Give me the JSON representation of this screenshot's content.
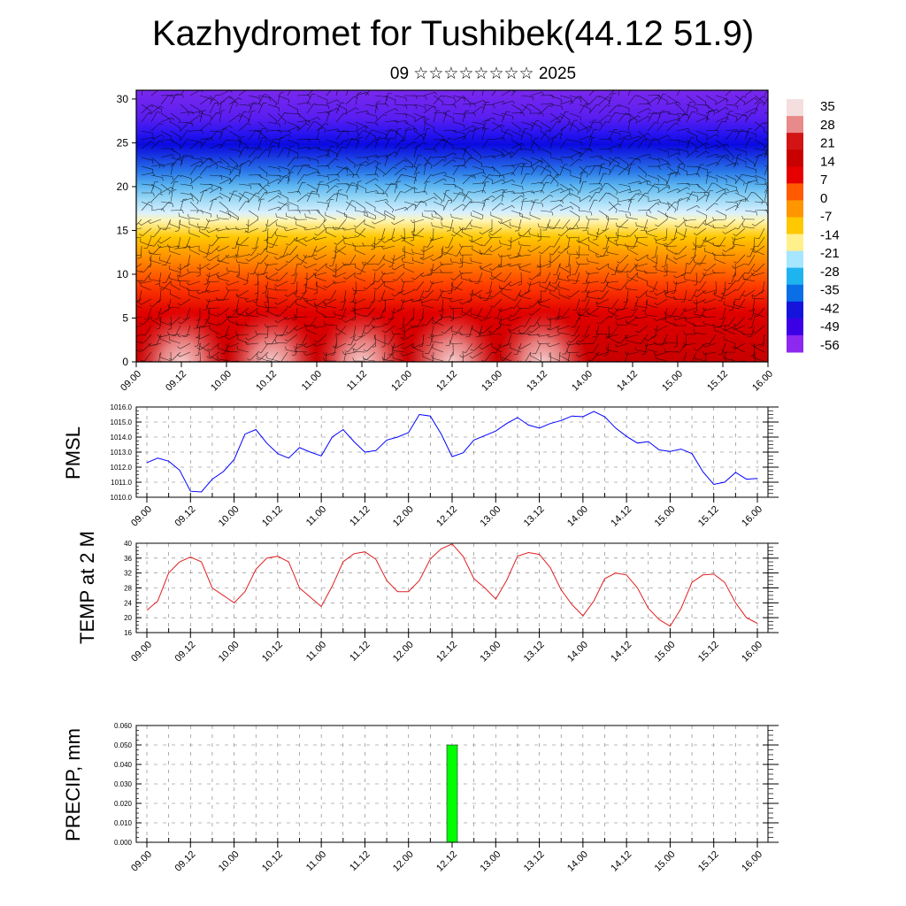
{
  "header": {
    "title": "Kazhydromet for Tushibek(44.12 51.9)",
    "subtitle": "09 ☆☆☆☆☆☆☆☆ 2025"
  },
  "time_ticks": [
    "09.00",
    "09.12",
    "10.00",
    "10.12",
    "11.00",
    "11.12",
    "12.00",
    "12.12",
    "13.00",
    "13.12",
    "14.00",
    "14.12",
    "15.00",
    "15.12",
    "16.00"
  ],
  "chart_data": [
    {
      "type": "heatmap",
      "description_kind": "vertical cross-section with wind barbs",
      "x_ticks": [
        "09.00",
        "09.12",
        "10.00",
        "10.12",
        "11.00",
        "11.12",
        "12.00",
        "12.12",
        "13.00",
        "13.12",
        "14.00",
        "14.12",
        "15.00",
        "15.12",
        "16.00"
      ],
      "y_ticks": [
        0,
        5,
        10,
        15,
        20,
        25,
        30
      ],
      "ylim": [
        0,
        31
      ],
      "colorbar_labels": [
        35,
        28,
        21,
        14,
        7,
        0,
        -7,
        -14,
        -21,
        -28,
        -35,
        -42,
        -49,
        -56
      ],
      "colorbar_colors": [
        "#f4dede",
        "#e88a8a",
        "#d21414",
        "#c80000",
        "#e60000",
        "#ff5a00",
        "#ff9600",
        "#ffc800",
        "#fff08c",
        "#a6e6ff",
        "#1eb4f0",
        "#0a6ee6",
        "#1414dc",
        "#3c00e6",
        "#8c28f0"
      ],
      "warm_cores_near_surface": [
        "09.12",
        "10.12",
        "11.12",
        "12.12",
        "13.12"
      ]
    },
    {
      "type": "line",
      "name": "PMSL",
      "ylabel": "PMSL",
      "ylim": [
        1010.0,
        1016.0
      ],
      "yticks": [
        "1010.0",
        "1011.0",
        "1012.0",
        "1013.0",
        "1014.0",
        "1015.0",
        "1016.0"
      ],
      "color": "#0000ff",
      "x_hours": [
        0,
        3,
        6,
        9,
        12,
        15,
        18,
        21,
        24,
        27,
        30,
        33,
        36,
        39,
        42,
        45,
        48,
        51,
        54,
        57,
        60,
        63,
        66,
        69,
        72,
        75,
        78,
        81,
        84,
        87,
        90,
        93,
        96,
        99,
        102,
        105,
        108,
        111,
        114,
        117,
        120,
        123,
        126,
        129,
        132,
        135,
        138,
        141,
        144,
        147,
        150,
        153,
        156,
        159,
        162,
        165,
        168
      ],
      "values": [
        1012.3,
        1012.6,
        1012.4,
        1011.8,
        1010.4,
        1010.35,
        1011.2,
        1011.7,
        1012.5,
        1014.2,
        1014.5,
        1013.6,
        1012.9,
        1012.6,
        1013.3,
        1013.0,
        1012.75,
        1014.0,
        1014.5,
        1013.7,
        1013.0,
        1013.1,
        1013.8,
        1014.0,
        1014.3,
        1015.5,
        1015.4,
        1014.2,
        1012.7,
        1012.95,
        1013.8,
        1014.1,
        1014.4,
        1014.9,
        1015.3,
        1014.8,
        1014.6,
        1014.9,
        1015.1,
        1015.4,
        1015.35,
        1015.7,
        1015.35,
        1014.6,
        1014.05,
        1013.6,
        1013.7,
        1013.15,
        1013.05,
        1013.2,
        1012.9,
        1011.7,
        1010.85,
        1011.0,
        1011.65,
        1011.2,
        1011.25
      ]
    },
    {
      "type": "line",
      "name": "TEMP at 2 M",
      "ylabel": "TEMP at 2 M",
      "ylim": [
        16,
        40
      ],
      "yticks": [
        "16",
        "20",
        "24",
        "28",
        "32",
        "36",
        "40"
      ],
      "color": "#e02020",
      "x_hours": [
        0,
        3,
        6,
        9,
        12,
        15,
        18,
        21,
        24,
        27,
        30,
        33,
        36,
        39,
        42,
        45,
        48,
        51,
        54,
        57,
        60,
        63,
        66,
        69,
        72,
        75,
        78,
        81,
        84,
        87,
        90,
        93,
        96,
        99,
        102,
        105,
        108,
        111,
        114,
        117,
        120,
        123,
        126,
        129,
        132,
        135,
        138,
        141,
        144,
        147,
        150,
        153,
        156,
        159,
        162,
        165,
        168
      ],
      "values": [
        22,
        24.5,
        32,
        35,
        36.3,
        35,
        28,
        26,
        24,
        27,
        33,
        36,
        36.5,
        35,
        28,
        25.5,
        23,
        28.5,
        35,
        37.2,
        37.7,
        35.7,
        30,
        27,
        27,
        30,
        35.8,
        38.5,
        39.8,
        36.5,
        30.5,
        28,
        25,
        30,
        36.5,
        37.5,
        37,
        33.5,
        27.5,
        23.5,
        20.5,
        24.5,
        30.5,
        32,
        31.5,
        28,
        22.5,
        19.5,
        17.7,
        22.5,
        29.5,
        31.5,
        31.7,
        29.5,
        24,
        20,
        18.5
      ]
    },
    {
      "type": "bar",
      "name": "PRECIP, mm",
      "ylabel": "PRECIP, mm",
      "ylim": [
        0,
        0.06
      ],
      "yticks": [
        "0.000",
        "0.010",
        "0.020",
        "0.030",
        "0.040",
        "0.050",
        "0.060"
      ],
      "color": "#00ff00",
      "bars": [
        {
          "x": "12.12",
          "value": 0.05
        }
      ]
    }
  ]
}
